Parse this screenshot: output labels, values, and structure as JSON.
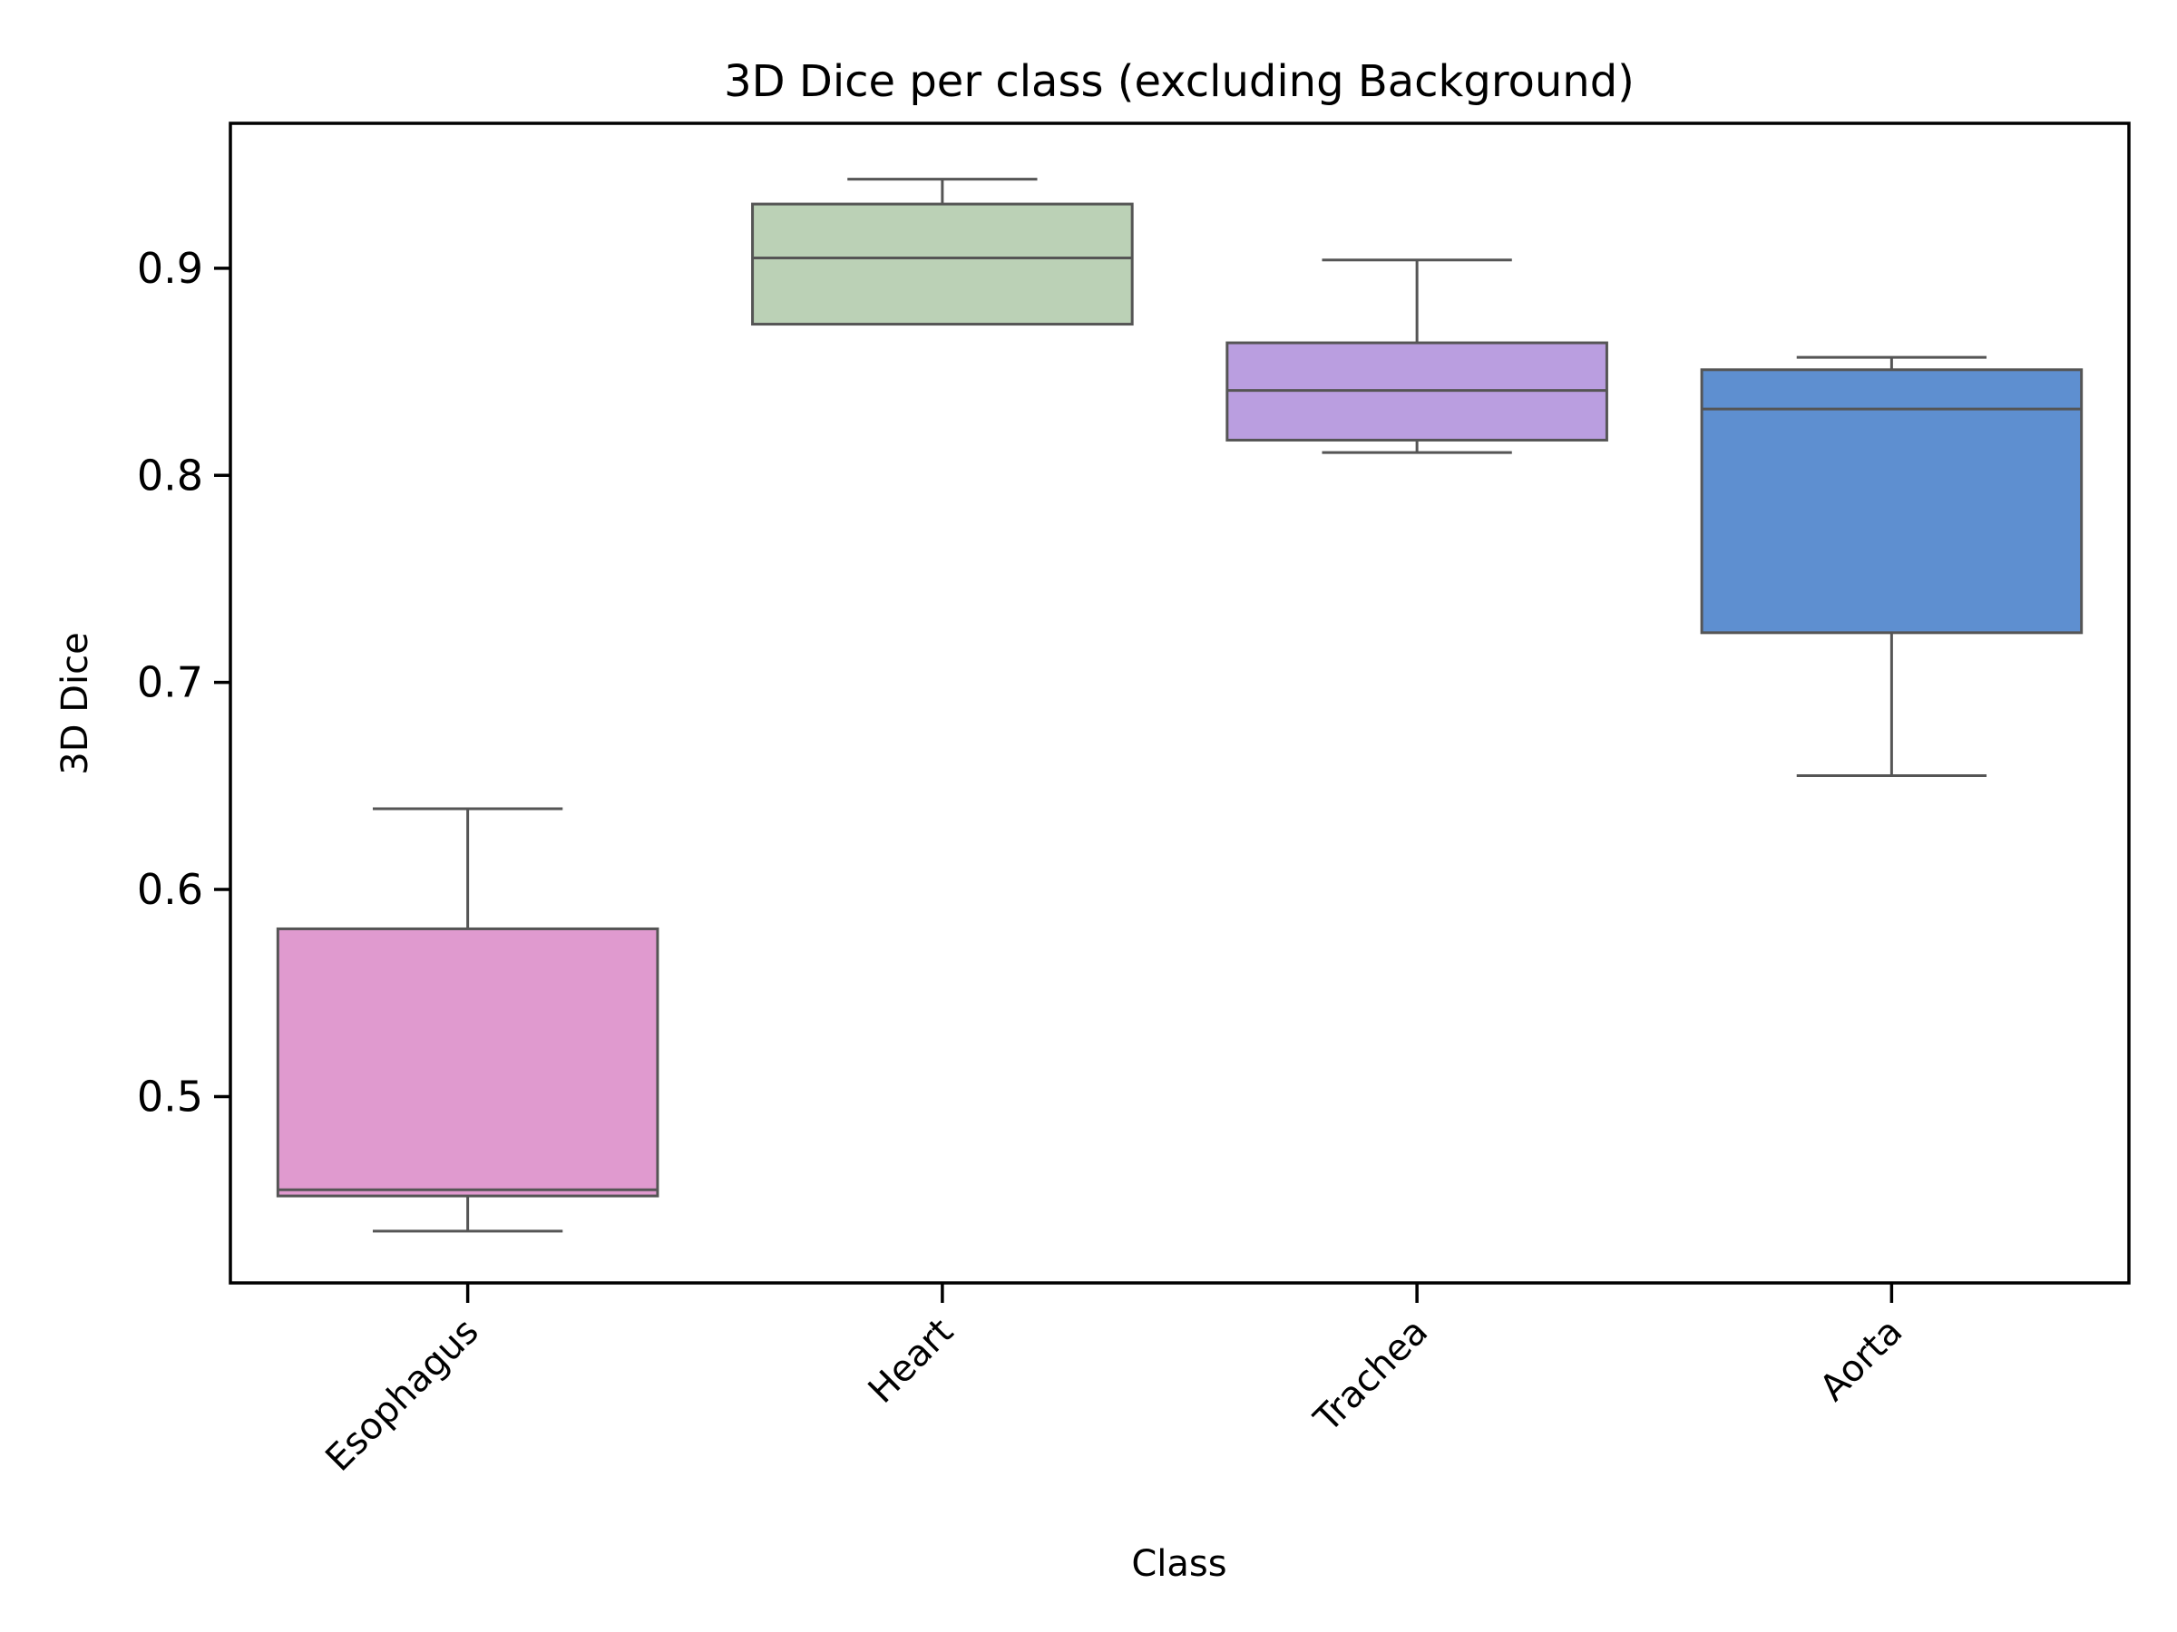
{
  "chart_data": {
    "type": "box",
    "title": "3D Dice per class (excluding Background)",
    "xlabel": "Class",
    "ylabel": "3D Dice",
    "ylim": [
      0.41,
      0.97
    ],
    "yticks": [
      0.5,
      0.6,
      0.7,
      0.8,
      0.9
    ],
    "ytick_labels": [
      "0.5",
      "0.6",
      "0.7",
      "0.8",
      "0.9"
    ],
    "grid": false,
    "categories": [
      "Esophagus",
      "Heart",
      "Trachea",
      "Aorta"
    ],
    "boxes": [
      {
        "category": "Esophagus",
        "whisker_low": 0.435,
        "q1": 0.452,
        "median": 0.455,
        "q3": 0.581,
        "whisker_high": 0.639,
        "color": "#e09acf"
      },
      {
        "category": "Heart",
        "whisker_low": 0.873,
        "q1": 0.873,
        "median": 0.905,
        "q3": 0.931,
        "whisker_high": 0.943,
        "color": "#bbd1b6"
      },
      {
        "category": "Trachea",
        "whisker_low": 0.811,
        "q1": 0.817,
        "median": 0.841,
        "q3": 0.864,
        "whisker_high": 0.904,
        "color": "#ba9ee0"
      },
      {
        "category": "Aorta",
        "whisker_low": 0.655,
        "q1": 0.724,
        "median": 0.832,
        "q3": 0.851,
        "whisker_high": 0.857,
        "color": "#5e8fd0"
      }
    ],
    "line_color": "#555555"
  }
}
